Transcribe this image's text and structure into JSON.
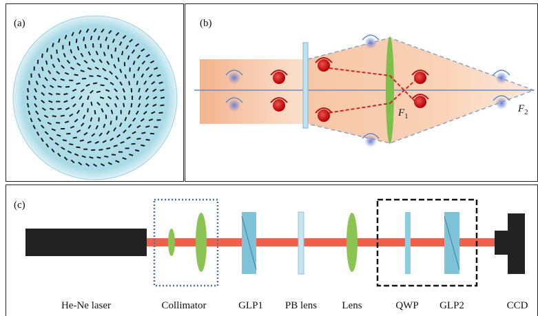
{
  "panel_a": {
    "label": "(a)"
  },
  "panel_b": {
    "label": "(b)",
    "focus_1": {
      "symbol": "F",
      "subscript": "1"
    },
    "focus_2": {
      "symbol": "F",
      "subscript": "2"
    }
  },
  "panel_c": {
    "label": "(c)",
    "components": [
      "He-Ne laser",
      "Collimator",
      "GLP1",
      "PB lens",
      "Lens",
      "QWP",
      "GLP2",
      "CCD"
    ]
  }
}
